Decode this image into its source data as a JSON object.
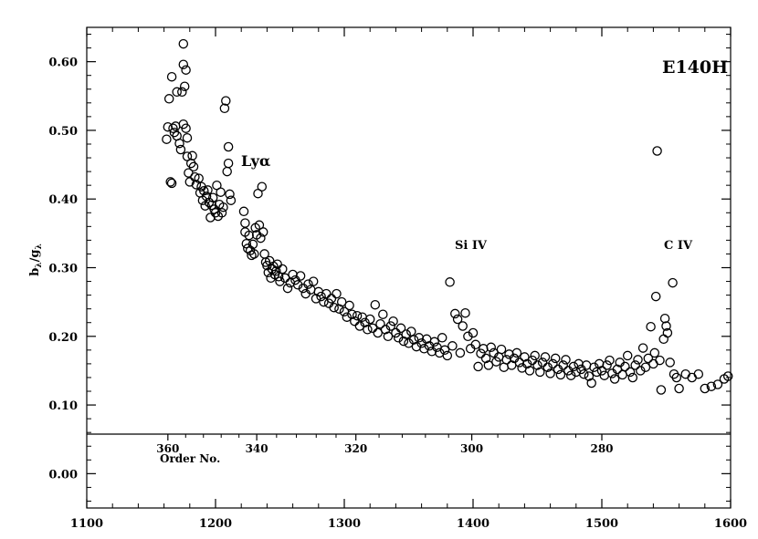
{
  "chart_data": {
    "type": "scatter",
    "title": "E140H",
    "ylabel_main": "b",
    "ylabel_sub1": "λ",
    "ylabel_sep": "/",
    "ylabel_den": "g",
    "ylabel_sub2": "λ",
    "xlabel": "",
    "xlim": [
      1100,
      1600
    ],
    "ylim": [
      -0.05,
      0.65
    ],
    "grid": false,
    "x_ticks": [
      "1100",
      "1200",
      "1300",
      "1400",
      "1500",
      "1600"
    ],
    "x_tick_values": [
      1100,
      1200,
      1300,
      1400,
      1500,
      1600
    ],
    "y_ticks": [
      "0.00",
      "0.10",
      "0.20",
      "0.30",
      "0.40",
      "0.50",
      "0.60"
    ],
    "y_tick_values": [
      0.0,
      0.1,
      0.2,
      0.3,
      0.4,
      0.5,
      0.6
    ],
    "order_axis": {
      "label": "Order No.",
      "ticks": [
        "360",
        "340",
        "320",
        "300",
        "280"
      ],
      "tick_wavelengths": [
        1163,
        1232,
        1309,
        1399,
        1500
      ]
    },
    "annotations": [
      {
        "text": "Lyα",
        "x": 1216,
        "y": 0.455
      },
      {
        "text": "Si IV",
        "x": 1396,
        "y": 0.335
      },
      {
        "text": "C IV",
        "x": 1549,
        "y": 0.335
      }
    ],
    "series": [
      {
        "marker": "open-circle",
        "points": [
          [
            1162,
            0.487
          ],
          [
            1163,
            0.505
          ],
          [
            1164,
            0.546
          ],
          [
            1165,
            0.425
          ],
          [
            1166,
            0.423
          ],
          [
            1166,
            0.578
          ],
          [
            1167,
            0.503
          ],
          [
            1168,
            0.497
          ],
          [
            1169,
            0.506
          ],
          [
            1170,
            0.556
          ],
          [
            1170,
            0.492
          ],
          [
            1172,
            0.481
          ],
          [
            1173,
            0.472
          ],
          [
            1174,
            0.556
          ],
          [
            1175,
            0.509
          ],
          [
            1175,
            0.596
          ],
          [
            1175,
            0.626
          ],
          [
            1176,
            0.564
          ],
          [
            1177,
            0.588
          ],
          [
            1177,
            0.503
          ],
          [
            1178,
            0.489
          ],
          [
            1178,
            0.462
          ],
          [
            1179,
            0.438
          ],
          [
            1180,
            0.425
          ],
          [
            1181,
            0.452
          ],
          [
            1182,
            0.463
          ],
          [
            1183,
            0.447
          ],
          [
            1184,
            0.432
          ],
          [
            1185,
            0.421
          ],
          [
            1187,
            0.43
          ],
          [
            1188,
            0.409
          ],
          [
            1189,
            0.418
          ],
          [
            1190,
            0.398
          ],
          [
            1191,
            0.412
          ],
          [
            1192,
            0.39
          ],
          [
            1193,
            0.404
          ],
          [
            1194,
            0.413
          ],
          [
            1195,
            0.395
          ],
          [
            1196,
            0.373
          ],
          [
            1197,
            0.391
          ],
          [
            1198,
            0.402
          ],
          [
            1199,
            0.385
          ],
          [
            1200,
            0.38
          ],
          [
            1201,
            0.42
          ],
          [
            1202,
            0.375
          ],
          [
            1203,
            0.392
          ],
          [
            1204,
            0.41
          ],
          [
            1205,
            0.38
          ],
          [
            1206,
            0.388
          ],
          [
            1207,
            0.532
          ],
          [
            1208,
            0.543
          ],
          [
            1209,
            0.44
          ],
          [
            1210,
            0.476
          ],
          [
            1210,
            0.452
          ],
          [
            1211,
            0.407
          ],
          [
            1212,
            0.398
          ],
          [
            1222,
            0.382
          ],
          [
            1223,
            0.352
          ],
          [
            1223,
            0.365
          ],
          [
            1224,
            0.335
          ],
          [
            1225,
            0.328
          ],
          [
            1226,
            0.347
          ],
          [
            1227,
            0.325
          ],
          [
            1228,
            0.318
          ],
          [
            1229,
            0.334
          ],
          [
            1230,
            0.32
          ],
          [
            1231,
            0.358
          ],
          [
            1232,
            0.348
          ],
          [
            1233,
            0.408
          ],
          [
            1234,
            0.362
          ],
          [
            1235,
            0.343
          ],
          [
            1236,
            0.418
          ],
          [
            1237,
            0.352
          ],
          [
            1238,
            0.32
          ],
          [
            1239,
            0.308
          ],
          [
            1240,
            0.303
          ],
          [
            1241,
            0.293
          ],
          [
            1242,
            0.31
          ],
          [
            1243,
            0.285
          ],
          [
            1244,
            0.298
          ],
          [
            1245,
            0.302
          ],
          [
            1246,
            0.29
          ],
          [
            1247,
            0.295
          ],
          [
            1248,
            0.305
          ],
          [
            1249,
            0.287
          ],
          [
            1250,
            0.28
          ],
          [
            1252,
            0.298
          ],
          [
            1254,
            0.285
          ],
          [
            1256,
            0.27
          ],
          [
            1258,
            0.278
          ],
          [
            1260,
            0.29
          ],
          [
            1262,
            0.282
          ],
          [
            1264,
            0.275
          ],
          [
            1266,
            0.288
          ],
          [
            1268,
            0.27
          ],
          [
            1270,
            0.262
          ],
          [
            1272,
            0.276
          ],
          [
            1274,
            0.268
          ],
          [
            1276,
            0.28
          ],
          [
            1278,
            0.255
          ],
          [
            1280,
            0.265
          ],
          [
            1282,
            0.258
          ],
          [
            1284,
            0.25
          ],
          [
            1286,
            0.262
          ],
          [
            1288,
            0.248
          ],
          [
            1290,
            0.255
          ],
          [
            1292,
            0.242
          ],
          [
            1294,
            0.262
          ],
          [
            1296,
            0.24
          ],
          [
            1298,
            0.25
          ],
          [
            1300,
            0.236
          ],
          [
            1302,
            0.228
          ],
          [
            1304,
            0.245
          ],
          [
            1306,
            0.232
          ],
          [
            1308,
            0.222
          ],
          [
            1310,
            0.23
          ],
          [
            1312,
            0.215
          ],
          [
            1314,
            0.228
          ],
          [
            1316,
            0.22
          ],
          [
            1318,
            0.21
          ],
          [
            1320,
            0.225
          ],
          [
            1322,
            0.212
          ],
          [
            1324,
            0.246
          ],
          [
            1326,
            0.205
          ],
          [
            1328,
            0.218
          ],
          [
            1330,
            0.232
          ],
          [
            1332,
            0.21
          ],
          [
            1334,
            0.2
          ],
          [
            1336,
            0.215
          ],
          [
            1338,
            0.222
          ],
          [
            1340,
            0.205
          ],
          [
            1342,
            0.198
          ],
          [
            1344,
            0.212
          ],
          [
            1346,
            0.193
          ],
          [
            1348,
            0.203
          ],
          [
            1350,
            0.19
          ],
          [
            1352,
            0.207
          ],
          [
            1354,
            0.195
          ],
          [
            1356,
            0.185
          ],
          [
            1358,
            0.198
          ],
          [
            1360,
            0.19
          ],
          [
            1362,
            0.182
          ],
          [
            1364,
            0.196
          ],
          [
            1366,
            0.186
          ],
          [
            1368,
            0.178
          ],
          [
            1370,
            0.192
          ],
          [
            1372,
            0.184
          ],
          [
            1374,
            0.176
          ],
          [
            1376,
            0.198
          ],
          [
            1378,
            0.18
          ],
          [
            1380,
            0.172
          ],
          [
            1382,
            0.279
          ],
          [
            1384,
            0.186
          ],
          [
            1386,
            0.233
          ],
          [
            1388,
            0.225
          ],
          [
            1390,
            0.176
          ],
          [
            1392,
            0.215
          ],
          [
            1394,
            0.234
          ],
          [
            1396,
            0.2
          ],
          [
            1398,
            0.182
          ],
          [
            1400,
            0.205
          ],
          [
            1402,
            0.188
          ],
          [
            1404,
            0.156
          ],
          [
            1406,
            0.175
          ],
          [
            1408,
            0.182
          ],
          [
            1410,
            0.168
          ],
          [
            1412,
            0.158
          ],
          [
            1414,
            0.184
          ],
          [
            1416,
            0.176
          ],
          [
            1418,
            0.163
          ],
          [
            1420,
            0.17
          ],
          [
            1422,
            0.181
          ],
          [
            1424,
            0.155
          ],
          [
            1426,
            0.166
          ],
          [
            1428,
            0.174
          ],
          [
            1430,
            0.158
          ],
          [
            1432,
            0.168
          ],
          [
            1434,
            0.176
          ],
          [
            1436,
            0.162
          ],
          [
            1438,
            0.154
          ],
          [
            1440,
            0.17
          ],
          [
            1442,
            0.16
          ],
          [
            1444,
            0.15
          ],
          [
            1446,
            0.165
          ],
          [
            1448,
            0.172
          ],
          [
            1450,
            0.158
          ],
          [
            1452,
            0.148
          ],
          [
            1454,
            0.162
          ],
          [
            1456,
            0.17
          ],
          [
            1458,
            0.155
          ],
          [
            1460,
            0.146
          ],
          [
            1462,
            0.16
          ],
          [
            1464,
            0.168
          ],
          [
            1466,
            0.152
          ],
          [
            1468,
            0.144
          ],
          [
            1470,
            0.158
          ],
          [
            1472,
            0.166
          ],
          [
            1474,
            0.15
          ],
          [
            1476,
            0.143
          ],
          [
            1478,
            0.156
          ],
          [
            1480,
            0.148
          ],
          [
            1482,
            0.16
          ],
          [
            1484,
            0.152
          ],
          [
            1486,
            0.145
          ],
          [
            1488,
            0.158
          ],
          [
            1490,
            0.142
          ],
          [
            1492,
            0.132
          ],
          [
            1494,
            0.155
          ],
          [
            1496,
            0.148
          ],
          [
            1498,
            0.16
          ],
          [
            1500,
            0.15
          ],
          [
            1502,
            0.143
          ],
          [
            1504,
            0.158
          ],
          [
            1506,
            0.165
          ],
          [
            1508,
            0.146
          ],
          [
            1510,
            0.138
          ],
          [
            1512,
            0.152
          ],
          [
            1514,
            0.162
          ],
          [
            1516,
            0.144
          ],
          [
            1518,
            0.156
          ],
          [
            1520,
            0.172
          ],
          [
            1522,
            0.148
          ],
          [
            1524,
            0.14
          ],
          [
            1526,
            0.158
          ],
          [
            1528,
            0.166
          ],
          [
            1530,
            0.15
          ],
          [
            1532,
            0.183
          ],
          [
            1534,
            0.155
          ],
          [
            1536,
            0.168
          ],
          [
            1538,
            0.214
          ],
          [
            1540,
            0.16
          ],
          [
            1541,
            0.176
          ],
          [
            1542,
            0.258
          ],
          [
            1543,
            0.47
          ],
          [
            1545,
            0.165
          ],
          [
            1546,
            0.122
          ],
          [
            1548,
            0.196
          ],
          [
            1549,
            0.226
          ],
          [
            1550,
            0.215
          ],
          [
            1551,
            0.205
          ],
          [
            1553,
            0.162
          ],
          [
            1555,
            0.278
          ],
          [
            1556,
            0.145
          ],
          [
            1558,
            0.14
          ],
          [
            1560,
            0.124
          ],
          [
            1565,
            0.145
          ],
          [
            1570,
            0.14
          ],
          [
            1575,
            0.145
          ],
          [
            1580,
            0.124
          ],
          [
            1585,
            0.127
          ],
          [
            1590,
            0.13
          ],
          [
            1595,
            0.138
          ],
          [
            1598,
            0.142
          ]
        ]
      }
    ]
  }
}
